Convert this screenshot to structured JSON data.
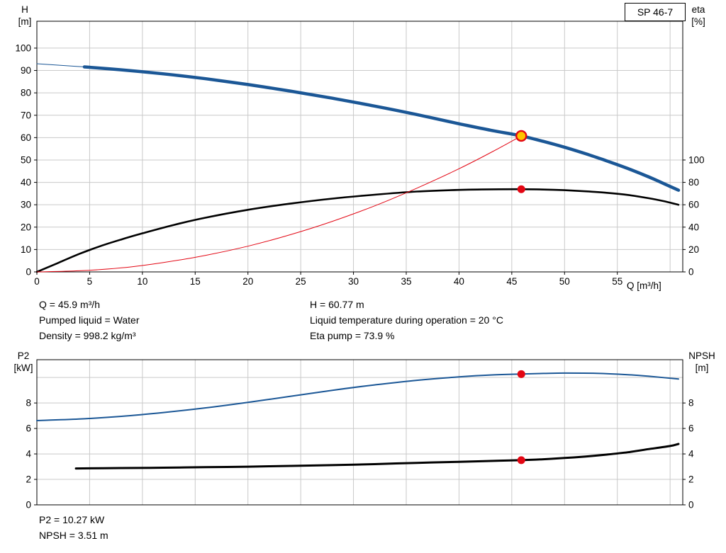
{
  "title_box": {
    "label": "SP 46-7"
  },
  "chart_data": [
    {
      "name": "hq-eta-chart",
      "type": "line",
      "x_axis": {
        "label": "Q [m³/h]",
        "range": [
          0,
          61.2
        ],
        "tick_values": [
          0,
          5,
          10,
          15,
          20,
          25,
          30,
          35,
          40,
          45,
          50,
          55
        ],
        "grid_values": [
          5,
          10,
          15,
          20,
          25,
          30,
          35,
          40,
          45,
          50,
          55,
          60
        ]
      },
      "left_axis": {
        "label": [
          "H",
          "[m]"
        ],
        "range": [
          0,
          112
        ],
        "tick_values": [
          0,
          10,
          20,
          30,
          40,
          50,
          60,
          70,
          80,
          90,
          100
        ],
        "grid_values": [
          10,
          20,
          30,
          40,
          50,
          60,
          70,
          80,
          90,
          100
        ]
      },
      "right_axis": {
        "label": [
          "eta",
          "[%]"
        ],
        "range": [
          0,
          224
        ],
        "tick_values": [
          0,
          20,
          40,
          60,
          80,
          100
        ]
      },
      "series": [
        {
          "name": "head-curve-lead",
          "axis": "left",
          "color": "#1b5796",
          "width": 1,
          "points": [
            [
              0,
              93
            ],
            [
              4.5,
              91.6
            ]
          ]
        },
        {
          "name": "head-curve",
          "axis": "left",
          "color": "#1b5796",
          "width": 4.5,
          "points": [
            [
              4.5,
              91.6
            ],
            [
              8,
              90.3
            ],
            [
              12,
              88.5
            ],
            [
              16,
              86.3
            ],
            [
              20,
              83.7
            ],
            [
              24,
              80.8
            ],
            [
              28,
              77.6
            ],
            [
              32,
              74.1
            ],
            [
              36,
              70.3
            ],
            [
              40,
              66.2
            ],
            [
              43,
              63.3
            ],
            [
              45.9,
              60.77
            ],
            [
              48,
              58.3
            ],
            [
              50,
              55.7
            ],
            [
              52,
              52.8
            ],
            [
              54,
              49.6
            ],
            [
              56,
              46.2
            ],
            [
              58,
              42.4
            ],
            [
              60,
              38.2
            ],
            [
              60.8,
              36.5
            ]
          ]
        },
        {
          "name": "efficiency-curve",
          "axis": "right",
          "color": "#000000",
          "width": 2.6,
          "points": [
            [
              0,
              0
            ],
            [
              2,
              8
            ],
            [
              4,
              16
            ],
            [
              6,
              23
            ],
            [
              8,
              29
            ],
            [
              10,
              34.5
            ],
            [
              13,
              42
            ],
            [
              16,
              48.5
            ],
            [
              20,
              55.5
            ],
            [
              24,
              61
            ],
            [
              28,
              65.5
            ],
            [
              32,
              69
            ],
            [
              36,
              71.8
            ],
            [
              40,
              73.3
            ],
            [
              43,
              73.8
            ],
            [
              45.9,
              73.9
            ],
            [
              48,
              73.6
            ],
            [
              50,
              73
            ],
            [
              52,
              72
            ],
            [
              54,
              70.7
            ],
            [
              56,
              68.8
            ],
            [
              58,
              65.8
            ],
            [
              59.5,
              63
            ],
            [
              60.8,
              60
            ]
          ]
        },
        {
          "name": "system-curve",
          "axis": "left",
          "color": "#e30613",
          "width": 1,
          "points": [
            [
              0,
              0
            ],
            [
              4,
              0.5
            ],
            [
              8,
              1.8
            ],
            [
              12,
              4.2
            ],
            [
              16,
              7.4
            ],
            [
              20,
              11.5
            ],
            [
              24,
              16.6
            ],
            [
              28,
              22.6
            ],
            [
              32,
              29.5
            ],
            [
              36,
              37.4
            ],
            [
              40,
              46.1
            ],
            [
              43,
              53.3
            ],
            [
              45.9,
              60.77
            ]
          ]
        }
      ],
      "markers": [
        {
          "name": "duty-point",
          "axis": "left",
          "x": 45.9,
          "y": 60.77,
          "r": 7,
          "fill": "#ffc400",
          "stroke": "#e30613",
          "stroke_width": 2.4
        },
        {
          "name": "efficiency-point",
          "axis": "right",
          "x": 45.9,
          "y": 73.9,
          "r": 5.5,
          "fill": "#e30613",
          "stroke": "none",
          "stroke_width": 0
        }
      ]
    },
    {
      "name": "p2-npsh-chart",
      "type": "line",
      "x_axis": {
        "label": "",
        "range": [
          0,
          61.2
        ],
        "tick_values": [],
        "grid_values": [
          5,
          10,
          15,
          20,
          25,
          30,
          35,
          40,
          45,
          50,
          55,
          60
        ]
      },
      "left_axis": {
        "label": [
          "P2",
          "[kW]"
        ],
        "range": [
          0,
          11.4
        ],
        "tick_values": [
          0,
          2,
          4,
          6,
          8
        ],
        "grid_values": [
          2,
          4,
          6,
          8,
          10
        ]
      },
      "right_axis": {
        "label": [
          "NPSH",
          "[m]"
        ],
        "range": [
          0,
          11.4
        ],
        "tick_values": [
          0,
          2,
          4,
          6,
          8
        ]
      },
      "series": [
        {
          "name": "p2-curve",
          "axis": "left",
          "color": "#1b5796",
          "width": 2,
          "points": [
            [
              0,
              6.62
            ],
            [
              4,
              6.74
            ],
            [
              8,
              6.95
            ],
            [
              12,
              7.25
            ],
            [
              16,
              7.62
            ],
            [
              20,
              8.05
            ],
            [
              24,
              8.52
            ],
            [
              28,
              9.0
            ],
            [
              32,
              9.42
            ],
            [
              36,
              9.78
            ],
            [
              40,
              10.05
            ],
            [
              43,
              10.2
            ],
            [
              45.9,
              10.27
            ],
            [
              48,
              10.32
            ],
            [
              50,
              10.35
            ],
            [
              53,
              10.33
            ],
            [
              56,
              10.22
            ],
            [
              58,
              10.1
            ],
            [
              60.8,
              9.88
            ]
          ]
        },
        {
          "name": "npsh-curve",
          "axis": "right",
          "color": "#000000",
          "width": 3,
          "points": [
            [
              3.7,
              2.86
            ],
            [
              8,
              2.89
            ],
            [
              12,
              2.92
            ],
            [
              16,
              2.96
            ],
            [
              20,
              3.0
            ],
            [
              24,
              3.06
            ],
            [
              28,
              3.12
            ],
            [
              32,
              3.2
            ],
            [
              36,
              3.3
            ],
            [
              40,
              3.38
            ],
            [
              43,
              3.45
            ],
            [
              45.9,
              3.51
            ],
            [
              48,
              3.58
            ],
            [
              50,
              3.68
            ],
            [
              52,
              3.8
            ],
            [
              54,
              3.95
            ],
            [
              56,
              4.13
            ],
            [
              58,
              4.38
            ],
            [
              60,
              4.62
            ],
            [
              60.8,
              4.78
            ]
          ]
        }
      ],
      "markers": [
        {
          "name": "p2-point",
          "axis": "left",
          "x": 45.9,
          "y": 10.27,
          "r": 5.5,
          "fill": "#e30613",
          "stroke": "none",
          "stroke_width": 0
        },
        {
          "name": "npsh-point",
          "axis": "right",
          "x": 45.9,
          "y": 3.51,
          "r": 5.5,
          "fill": "#e30613",
          "stroke": "none",
          "stroke_width": 0
        }
      ]
    }
  ],
  "info_top": {
    "rows": [
      {
        "col1": "Q = 45.9 m³/h",
        "col2": "H = 60.77 m"
      },
      {
        "col1": "Pumped liquid = Water",
        "col2": "Liquid temperature during operation = 20 °C"
      },
      {
        "col1": "Density = 998.2 kg/m³",
        "col2": "Eta pump = 73.9 %"
      }
    ]
  },
  "info_bottom": {
    "lines": [
      "P2 = 10.27 kW",
      "NPSH = 3.51 m"
    ]
  },
  "colors": {
    "grid": "#c9c9c9",
    "axis": "#000000",
    "accent_blue": "#1b5796",
    "accent_red": "#e30613",
    "marker_yellow": "#ffc400"
  }
}
